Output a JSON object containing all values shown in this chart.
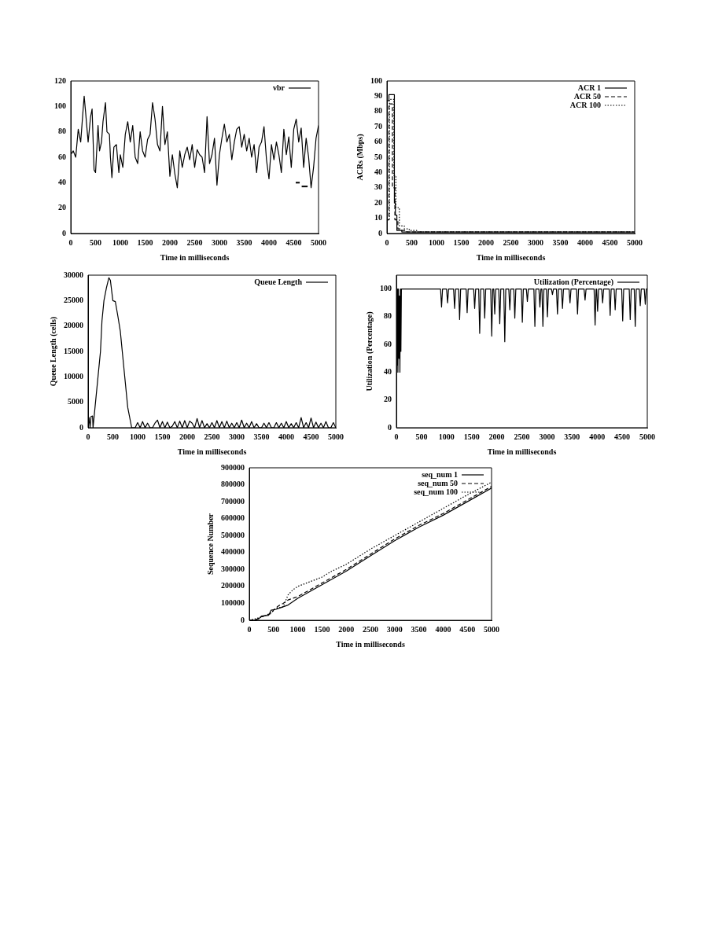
{
  "chart_data": [
    {
      "type": "line",
      "xlabel": "Time in milliseconds",
      "xlim": [
        0,
        5000
      ],
      "xticks": [
        0,
        500,
        1000,
        1500,
        2000,
        2500,
        3000,
        3500,
        4000,
        4500,
        5000
      ],
      "ylim": [
        0,
        120
      ],
      "yticks": [
        0,
        20,
        40,
        60,
        80,
        100,
        120
      ],
      "grid": false,
      "legend": "top right",
      "line_style": "solid",
      "marker": "none",
      "series": [
        {
          "name": "vbr",
          "color": "#000000",
          "x": [
            0,
            50,
            100,
            150,
            200,
            250,
            270,
            300,
            350,
            400,
            430,
            470,
            500,
            550,
            580,
            620,
            650,
            700,
            730,
            780,
            800,
            830,
            870,
            920,
            970,
            1000,
            1050,
            1100,
            1150,
            1200,
            1250,
            1300,
            1350,
            1400,
            1450,
            1500,
            1550,
            1600,
            1650,
            1700,
            1750,
            1800,
            1850,
            1900,
            1950,
            2000,
            2050,
            2100,
            2150,
            2200,
            2250,
            2300,
            2350,
            2400,
            2450,
            2500,
            2550,
            2600,
            2650,
            2700,
            2750,
            2800,
            2850,
            2900,
            2950,
            3000,
            3050,
            3100,
            3150,
            3200,
            3250,
            3300,
            3350,
            3400,
            3450,
            3500,
            3550,
            3600,
            3650,
            3700,
            3750,
            3800,
            3850,
            3900,
            3950,
            4000,
            4050,
            4100,
            4150,
            4200,
            4250,
            4300,
            4350,
            4400,
            4450,
            4500,
            4550,
            4600,
            4650,
            4700,
            4750,
            4800,
            4850,
            4900,
            4950,
            5000
          ],
          "values": [
            62,
            65,
            60,
            82,
            72,
            98,
            108,
            95,
            72,
            92,
            98,
            50,
            48,
            85,
            65,
            72,
            88,
            103,
            80,
            78,
            60,
            44,
            68,
            70,
            48,
            62,
            52,
            78,
            88,
            72,
            85,
            60,
            55,
            80,
            65,
            60,
            74,
            78,
            103,
            90,
            70,
            65,
            100,
            70,
            80,
            45,
            62,
            47,
            36,
            65,
            52,
            62,
            68,
            58,
            70,
            52,
            66,
            62,
            60,
            48,
            92,
            55,
            62,
            75,
            38,
            62,
            75,
            86,
            72,
            78,
            58,
            72,
            82,
            84,
            68,
            78,
            65,
            75,
            60,
            70,
            48,
            68,
            72,
            84,
            58,
            43,
            70,
            58,
            72,
            62,
            48,
            82,
            62,
            76,
            52,
            82,
            90,
            72,
            83,
            52,
            75,
            60,
            36,
            52,
            75,
            85
          ]
        },
        {
          "color": "#000000",
          "x": [
            4540,
            4620
          ],
          "values": [
            40,
            40
          ]
        },
        {
          "color": "#000000",
          "x": [
            4660,
            4780
          ],
          "values": [
            37,
            37
          ]
        }
      ]
    },
    {
      "type": "step",
      "xlabel": "Time in milliseconds",
      "ylabel": "ACRs (Mbps)",
      "xlim": [
        0,
        5000
      ],
      "xticks": [
        0,
        500,
        1000,
        1500,
        2000,
        2500,
        3000,
        3500,
        4000,
        4500,
        5000
      ],
      "ylim": [
        0,
        100
      ],
      "yticks": [
        0,
        10,
        20,
        30,
        40,
        50,
        60,
        70,
        80,
        90,
        100
      ],
      "grid": false,
      "legend": "top right",
      "marker": "none",
      "series": [
        {
          "name": "ACR 1",
          "color": "#000000",
          "line_style": "solid",
          "x": [
            0,
            40,
            150,
            170,
            200,
            300,
            350,
            500,
            5000
          ],
          "values": [
            0,
            87,
            91,
            20,
            12,
            2,
            1,
            1,
            1
          ]
        },
        {
          "name": "ACR 50",
          "color": "#000000",
          "line_style": "dashed",
          "x": [
            0,
            40,
            110,
            160,
            220,
            300,
            400,
            5000
          ],
          "values": [
            0,
            9,
            85,
            30,
            9,
            3,
            2,
            1
          ]
        },
        {
          "name": "ACR 100",
          "color": "#000000",
          "line_style": "dotted",
          "x": [
            0,
            50,
            140,
            180,
            250,
            350,
            450,
            600,
            5000
          ],
          "values": [
            0,
            9,
            88,
            38,
            17,
            5,
            3,
            2,
            1
          ]
        }
      ]
    },
    {
      "type": "line",
      "xlabel": "Time in milliseconds",
      "ylabel": "Queue Length (cells)",
      "xlim": [
        0,
        5000
      ],
      "xticks": [
        0,
        500,
        1000,
        1500,
        2000,
        2500,
        3000,
        3500,
        4000,
        4500,
        5000
      ],
      "ylim": [
        0,
        30000
      ],
      "yticks": [
        0,
        5000,
        10000,
        15000,
        20000,
        25000,
        30000
      ],
      "grid": false,
      "legend": "top right",
      "line_style": "solid",
      "marker": "none",
      "series": [
        {
          "name": "Queue Length",
          "color": "#000000",
          "x": [
            0,
            20,
            40,
            60,
            90,
            100,
            150,
            200,
            250,
            280,
            320,
            370,
            420,
            450,
            500,
            550,
            600,
            650,
            700,
            750,
            800,
            880,
            950,
            1000,
            1050,
            1100,
            1150,
            1200,
            1250,
            1300,
            1350,
            1400,
            1450,
            1500,
            1550,
            1600,
            1650,
            1700,
            1750,
            1800,
            1850,
            1900,
            1950,
            2000,
            2050,
            2100,
            2150,
            2200,
            2250,
            2300,
            2350,
            2400,
            2450,
            2500,
            2550,
            2600,
            2650,
            2700,
            2750,
            2800,
            2850,
            2900,
            2950,
            3000,
            3050,
            3100,
            3150,
            3200,
            3250,
            3300,
            3350,
            3400,
            3450,
            3500,
            3550,
            3600,
            3650,
            3700,
            3750,
            3800,
            3850,
            3900,
            3950,
            4000,
            4050,
            4100,
            4150,
            4200,
            4250,
            4300,
            4350,
            4400,
            4450,
            4500,
            4550,
            4600,
            4650,
            4700,
            4750,
            4800,
            4850,
            4900,
            4950,
            5000
          ],
          "values": [
            0,
            2000,
            0,
            2200,
            2300,
            0,
            5000,
            10000,
            15000,
            21000,
            25000,
            27500,
            29500,
            29000,
            25000,
            24800,
            22000,
            19000,
            14000,
            9000,
            4000,
            0,
            0,
            1000,
            0,
            1200,
            0,
            900,
            0,
            0,
            900,
            1500,
            0,
            1200,
            0,
            1100,
            0,
            300,
            1200,
            0,
            1300,
            0,
            1400,
            0,
            1300,
            900,
            0,
            1800,
            0,
            1400,
            0,
            800,
            0,
            1000,
            0,
            1400,
            0,
            1200,
            0,
            1300,
            0,
            900,
            0,
            1000,
            0,
            1500,
            0,
            900,
            0,
            1200,
            0,
            800,
            0,
            0,
            900,
            0,
            1000,
            0,
            0,
            1000,
            0,
            900,
            0,
            1200,
            0,
            800,
            0,
            1000,
            0,
            2000,
            0,
            1000,
            0,
            1900,
            0,
            1100,
            0,
            900,
            0,
            1200,
            0,
            0,
            1000,
            0
          ]
        }
      ]
    },
    {
      "type": "line",
      "xlabel": "Time in milliseconds",
      "ylabel": "Utilization (Percentage)",
      "xlim": [
        0,
        5000
      ],
      "xticks": [
        0,
        500,
        1000,
        1500,
        2000,
        2500,
        3000,
        3500,
        4000,
        4500,
        5000
      ],
      "ylim": [
        0,
        110
      ],
      "yticks": [
        0,
        20,
        40,
        60,
        80,
        100
      ],
      "grid": false,
      "legend": "top right",
      "line_style": "solid",
      "marker": "none",
      "series": [
        {
          "name": "Utilization (Percentage)",
          "color": "#000000",
          "x": [
            0,
            10,
            20,
            30,
            40,
            50,
            60,
            70,
            80,
            90,
            100,
            110,
            880,
            900,
            920,
            1000,
            1020,
            1040,
            1140,
            1160,
            1180,
            1240,
            1260,
            1280,
            1390,
            1410,
            1430,
            1540,
            1560,
            1580,
            1640,
            1660,
            1680,
            1740,
            1760,
            1780,
            1880,
            1900,
            1920,
            1940,
            1960,
            1980,
            2040,
            2060,
            2080,
            2140,
            2160,
            2180,
            2240,
            2260,
            2280,
            2340,
            2360,
            2380,
            2490,
            2510,
            2530,
            2590,
            2610,
            2630,
            2740,
            2760,
            2780,
            2840,
            2860,
            2880,
            2900,
            2920,
            2940,
            2990,
            3010,
            3030,
            3090,
            3110,
            3130,
            3190,
            3210,
            3230,
            3290,
            3310,
            3330,
            3440,
            3460,
            3480,
            3590,
            3610,
            3630,
            3740,
            3760,
            3780,
            3940,
            3960,
            3980,
            3990,
            4010,
            4030,
            4090,
            4110,
            4130,
            4240,
            4260,
            4280,
            4340,
            4360,
            4380,
            4490,
            4510,
            4530,
            4640,
            4660,
            4680,
            4740,
            4760,
            4780,
            4840,
            4860,
            4880,
            4940,
            4960,
            4980,
            5000
          ],
          "values": [
            100,
            45,
            100,
            40,
            100,
            50,
            95,
            40,
            100,
            55,
            100,
            100,
            100,
            87,
            100,
            100,
            90,
            100,
            100,
            86,
            100,
            100,
            78,
            100,
            100,
            83,
            100,
            100,
            86,
            100,
            100,
            68,
            100,
            100,
            79,
            100,
            100,
            66,
            100,
            100,
            82,
            100,
            100,
            75,
            100,
            100,
            62,
            100,
            100,
            85,
            100,
            100,
            79,
            100,
            100,
            76,
            100,
            100,
            91,
            100,
            100,
            73,
            100,
            100,
            87,
            100,
            100,
            73,
            100,
            100,
            80,
            100,
            100,
            96,
            100,
            100,
            82,
            100,
            100,
            86,
            100,
            100,
            90,
            100,
            100,
            82,
            100,
            100,
            92,
            100,
            100,
            74,
            100,
            100,
            84,
            100,
            100,
            90,
            100,
            100,
            81,
            100,
            100,
            85,
            100,
            100,
            77,
            100,
            100,
            78,
            100,
            100,
            73,
            100,
            100,
            88,
            100,
            100,
            89,
            100,
            100
          ]
        }
      ]
    },
    {
      "type": "line",
      "xlabel": "Time in milliseconds",
      "ylabel": "Sequence Number",
      "xlim": [
        0,
        5000
      ],
      "xticks": [
        0,
        500,
        1000,
        1500,
        2000,
        2500,
        3000,
        3500,
        4000,
        4500,
        5000
      ],
      "ylim": [
        0,
        900000
      ],
      "yticks": [
        0,
        100000,
        200000,
        300000,
        400000,
        500000,
        600000,
        700000,
        800000,
        900000
      ],
      "grid": false,
      "legend": "top right",
      "marker": "none",
      "series": [
        {
          "name": "seq_num 1",
          "color": "#000000",
          "line_style": "solid",
          "x": [
            0,
            100,
            200,
            250,
            400,
            450,
            550,
            650,
            800,
            900,
            1000,
            1500,
            2000,
            2500,
            3000,
            3500,
            4000,
            4500,
            5000
          ],
          "values": [
            0,
            0,
            10000,
            25000,
            30000,
            60000,
            65000,
            75000,
            90000,
            110000,
            130000,
            210000,
            290000,
            380000,
            470000,
            550000,
            620000,
            700000,
            780000
          ]
        },
        {
          "name": "seq_num 50",
          "color": "#000000",
          "line_style": "dashed",
          "x": [
            0,
            150,
            250,
            350,
            450,
            500,
            600,
            700,
            800,
            1000,
            1500,
            2000,
            2500,
            3000,
            3500,
            4000,
            4500,
            5000
          ],
          "values": [
            0,
            5000,
            20000,
            30000,
            40000,
            60000,
            85000,
            100000,
            120000,
            140000,
            220000,
            300000,
            390000,
            480000,
            560000,
            630000,
            710000,
            790000
          ]
        },
        {
          "name": "seq_num 100",
          "color": "#000000",
          "line_style": "dotted",
          "x": [
            0,
            200,
            350,
            450,
            550,
            700,
            800,
            900,
            1000,
            1500,
            1700,
            2000,
            2500,
            3000,
            3500,
            4000,
            4500,
            5000
          ],
          "values": [
            0,
            15000,
            30000,
            45000,
            70000,
            80000,
            150000,
            180000,
            200000,
            255000,
            290000,
            330000,
            420000,
            500000,
            580000,
            660000,
            740000,
            815000
          ]
        }
      ]
    }
  ]
}
